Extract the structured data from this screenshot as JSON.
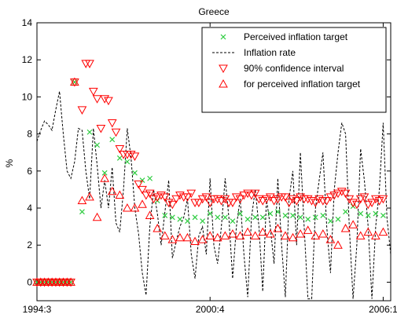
{
  "chart_data": {
    "type": "line",
    "title": "Greece",
    "ylabel": "%",
    "xlabel": "",
    "ylim": [
      -1,
      14
    ],
    "yticks": [
      0,
      2,
      4,
      6,
      8,
      10,
      12,
      14
    ],
    "xlim": [
      0,
      47
    ],
    "xticks": [
      {
        "pos": 0,
        "label": "1994:3"
      },
      {
        "pos": 23,
        "label": "2000:4"
      },
      {
        "pos": 46,
        "label": "2006:1"
      }
    ],
    "legend_position": "top-right",
    "legend": [
      {
        "label": "Perceived inflation target",
        "marker": "x",
        "color": "#2ecc40"
      },
      {
        "label": "Inflation rate",
        "marker": "dashed-line",
        "color": "#000000"
      },
      {
        "label": "90% confidence interval",
        "marker": "triangle-down",
        "color": "#ff0000"
      },
      {
        "label": "for perceived inflation target",
        "marker": "triangle-up",
        "color": "#ff0000"
      }
    ],
    "series": [
      {
        "name": "Inflation rate",
        "style": "dashed",
        "color": "#000000",
        "x": [
          0,
          0.5,
          1,
          1.5,
          2,
          2.5,
          3,
          3.5,
          4,
          4.5,
          5,
          5.5,
          6,
          6.5,
          7,
          7.5,
          8,
          8.5,
          9,
          9.5,
          10,
          10.5,
          11,
          11.5,
          12,
          12.5,
          13,
          13.5,
          14,
          14.5,
          15,
          15.5,
          16,
          16.5,
          17,
          17.5,
          18,
          18.5,
          19,
          19.5,
          20,
          20.5,
          21,
          21.5,
          22,
          22.5,
          23,
          23.5,
          24,
          24.5,
          25,
          25.5,
          26,
          26.5,
          27,
          27.5,
          28,
          28.5,
          29,
          29.5,
          30,
          30.5,
          31,
          31.5,
          32,
          32.5,
          33,
          33.5,
          34,
          34.5,
          35,
          35.5,
          36,
          36.5,
          37,
          37.5,
          38,
          38.5,
          39,
          39.5,
          40,
          40.5,
          41,
          41.5,
          42,
          42.5,
          43,
          43.5,
          44,
          44.5,
          45,
          45.5,
          46,
          46.5,
          47
        ],
        "values": [
          7.6,
          8.2,
          8.7,
          8.5,
          8.2,
          9.3,
          10.3,
          8.0,
          6.0,
          5.6,
          6.5,
          8.3,
          8.2,
          6.0,
          4.5,
          8.3,
          6.3,
          4.0,
          5.5,
          4.0,
          6.2,
          3.2,
          2.7,
          5.0,
          8.3,
          6.7,
          4.0,
          2.6,
          0.5,
          -0.7,
          3.0,
          5.0,
          3.7,
          2.0,
          3.8,
          5.5,
          1.3,
          2.2,
          3.0,
          3.5,
          4.5,
          1.5,
          0.2,
          2.5,
          3.0,
          1.5,
          5.6,
          2.0,
          1.0,
          3.0,
          5.6,
          3.5,
          0.2,
          3.0,
          4.5,
          1.5,
          -0.8,
          3.5,
          5.0,
          3.0,
          -0.5,
          4.5,
          3.0,
          1.0,
          5.6,
          2.0,
          -0.8,
          4.5,
          6.0,
          2.0,
          7.0,
          3.0,
          -0.9,
          -0.9,
          4.0,
          5.5,
          7.0,
          3.0,
          0.5,
          5.0,
          7.0,
          8.6,
          8.0,
          3.0,
          -0.9,
          2.0,
          7.2,
          5.5,
          3.0,
          -0.9,
          3.0,
          5.0,
          8.6,
          3.5,
          1.5
        ]
      },
      {
        "name": "Perceived inflation target",
        "style": "x",
        "color": "#2ecc40",
        "x": [
          0,
          0.5,
          1,
          1.5,
          2,
          2.5,
          3,
          3.5,
          4,
          4.5,
          5,
          6,
          7,
          8,
          9,
          10,
          11,
          12,
          13,
          14,
          15,
          16,
          17,
          18,
          19,
          20,
          21,
          22,
          23,
          24,
          25,
          26,
          27,
          28,
          29,
          30,
          31,
          32,
          33,
          34,
          35,
          36,
          37,
          38,
          39,
          40,
          41,
          42,
          43,
          44,
          45,
          46
        ],
        "values": [
          0,
          0,
          0,
          0,
          0,
          0,
          0,
          0,
          0,
          0,
          10.8,
          3.8,
          8.1,
          7.4,
          5.9,
          7.7,
          6.7,
          6.5,
          5.9,
          5.5,
          5.6,
          4.4,
          3.6,
          3.5,
          3.4,
          3.3,
          3.5,
          3.3,
          3.7,
          3.5,
          3.5,
          3.3,
          3.7,
          3.4,
          3.5,
          3.5,
          3.7,
          3.8,
          3.6,
          3.6,
          3.5,
          3.4,
          3.5,
          3.6,
          3.3,
          3.4,
          3.8,
          4.1,
          3.7,
          3.6,
          3.7,
          3.6
        ]
      },
      {
        "name": "90% confidence interval",
        "style": "triangle-down",
        "color": "#ff0000",
        "x": [
          0,
          0.5,
          1,
          1.5,
          2,
          2.5,
          3,
          3.5,
          4,
          4.5,
          5,
          6,
          6.5,
          7,
          7.5,
          8,
          8.5,
          9,
          9.5,
          10,
          10.5,
          11,
          11.5,
          12,
          12.5,
          13,
          13.5,
          14,
          14.5,
          15,
          15.5,
          16,
          16.5,
          17,
          17.5,
          18,
          18.5,
          19,
          19.5,
          20,
          20.5,
          21,
          21.5,
          22,
          22.5,
          23,
          23.5,
          24,
          24.5,
          25,
          25.5,
          26,
          26.5,
          27,
          27.5,
          28,
          28.5,
          29,
          29.5,
          30,
          30.5,
          31,
          31.5,
          32,
          32.5,
          33,
          33.5,
          34,
          34.5,
          35,
          35.5,
          36,
          36.5,
          37,
          37.5,
          38,
          38.5,
          39,
          39.5,
          40,
          40.5,
          41,
          41.5,
          42,
          42.5,
          43,
          43.5,
          44,
          44.5,
          45,
          45.5,
          46
        ],
        "values": [
          0,
          0,
          0,
          0,
          0,
          0,
          0,
          0,
          0,
          0,
          10.8,
          9.3,
          11.8,
          11.8,
          10.3,
          9.9,
          8.3,
          9.9,
          9.8,
          8.6,
          8.1,
          7.2,
          6.9,
          6.9,
          6.9,
          6.8,
          5.3,
          5.0,
          4.7,
          4.8,
          4.5,
          4.6,
          4.7,
          4.6,
          4.3,
          4.2,
          4.5,
          4.7,
          4.6,
          4.6,
          4.8,
          4.3,
          4.3,
          4.5,
          4.6,
          4.3,
          4.5,
          4.5,
          4.4,
          4.5,
          4.3,
          4.3,
          4.6,
          4.5,
          4.7,
          4.8,
          4.7,
          4.8,
          4.5,
          4.4,
          4.5,
          4.6,
          4.4,
          4.5,
          4.6,
          4.6,
          4.3,
          4.5,
          4.4,
          4.6,
          4.5,
          4.5,
          4.4,
          4.3,
          4.5,
          4.4,
          4.4,
          4.6,
          4.7,
          4.8,
          4.9,
          4.8,
          4.5,
          4.3,
          4.2,
          4.5,
          4.6,
          4.2,
          4.3,
          4.5,
          4.4,
          4.5
        ]
      },
      {
        "name": "for perceived inflation target",
        "style": "triangle-up",
        "color": "#ff0000",
        "x": [
          0,
          0.5,
          1,
          1.5,
          2,
          2.5,
          3,
          3.5,
          4,
          4.5,
          5,
          6,
          7,
          8,
          9,
          10,
          11,
          12,
          13,
          14,
          15,
          16,
          17,
          18,
          19,
          20,
          21,
          22,
          23,
          24,
          25,
          26,
          27,
          28,
          29,
          30,
          31,
          32,
          33,
          34,
          35,
          36,
          37,
          38,
          39,
          40,
          41,
          42,
          43,
          44,
          45,
          46
        ],
        "values": [
          0,
          0,
          0,
          0,
          0,
          0,
          0,
          0,
          0,
          0,
          10.8,
          4.4,
          4.6,
          3.5,
          5.6,
          4.9,
          4.7,
          4.0,
          4.0,
          4.2,
          3.6,
          2.9,
          2.5,
          2.3,
          2.4,
          2.4,
          2.2,
          2.3,
          2.5,
          2.4,
          2.5,
          2.6,
          2.5,
          2.7,
          2.5,
          2.7,
          2.6,
          2.9,
          2.5,
          2.4,
          2.6,
          2.8,
          2.5,
          2.6,
          2.3,
          2.0,
          2.9,
          3.1,
          2.5,
          2.7,
          2.5,
          2.7
        ]
      }
    ]
  }
}
